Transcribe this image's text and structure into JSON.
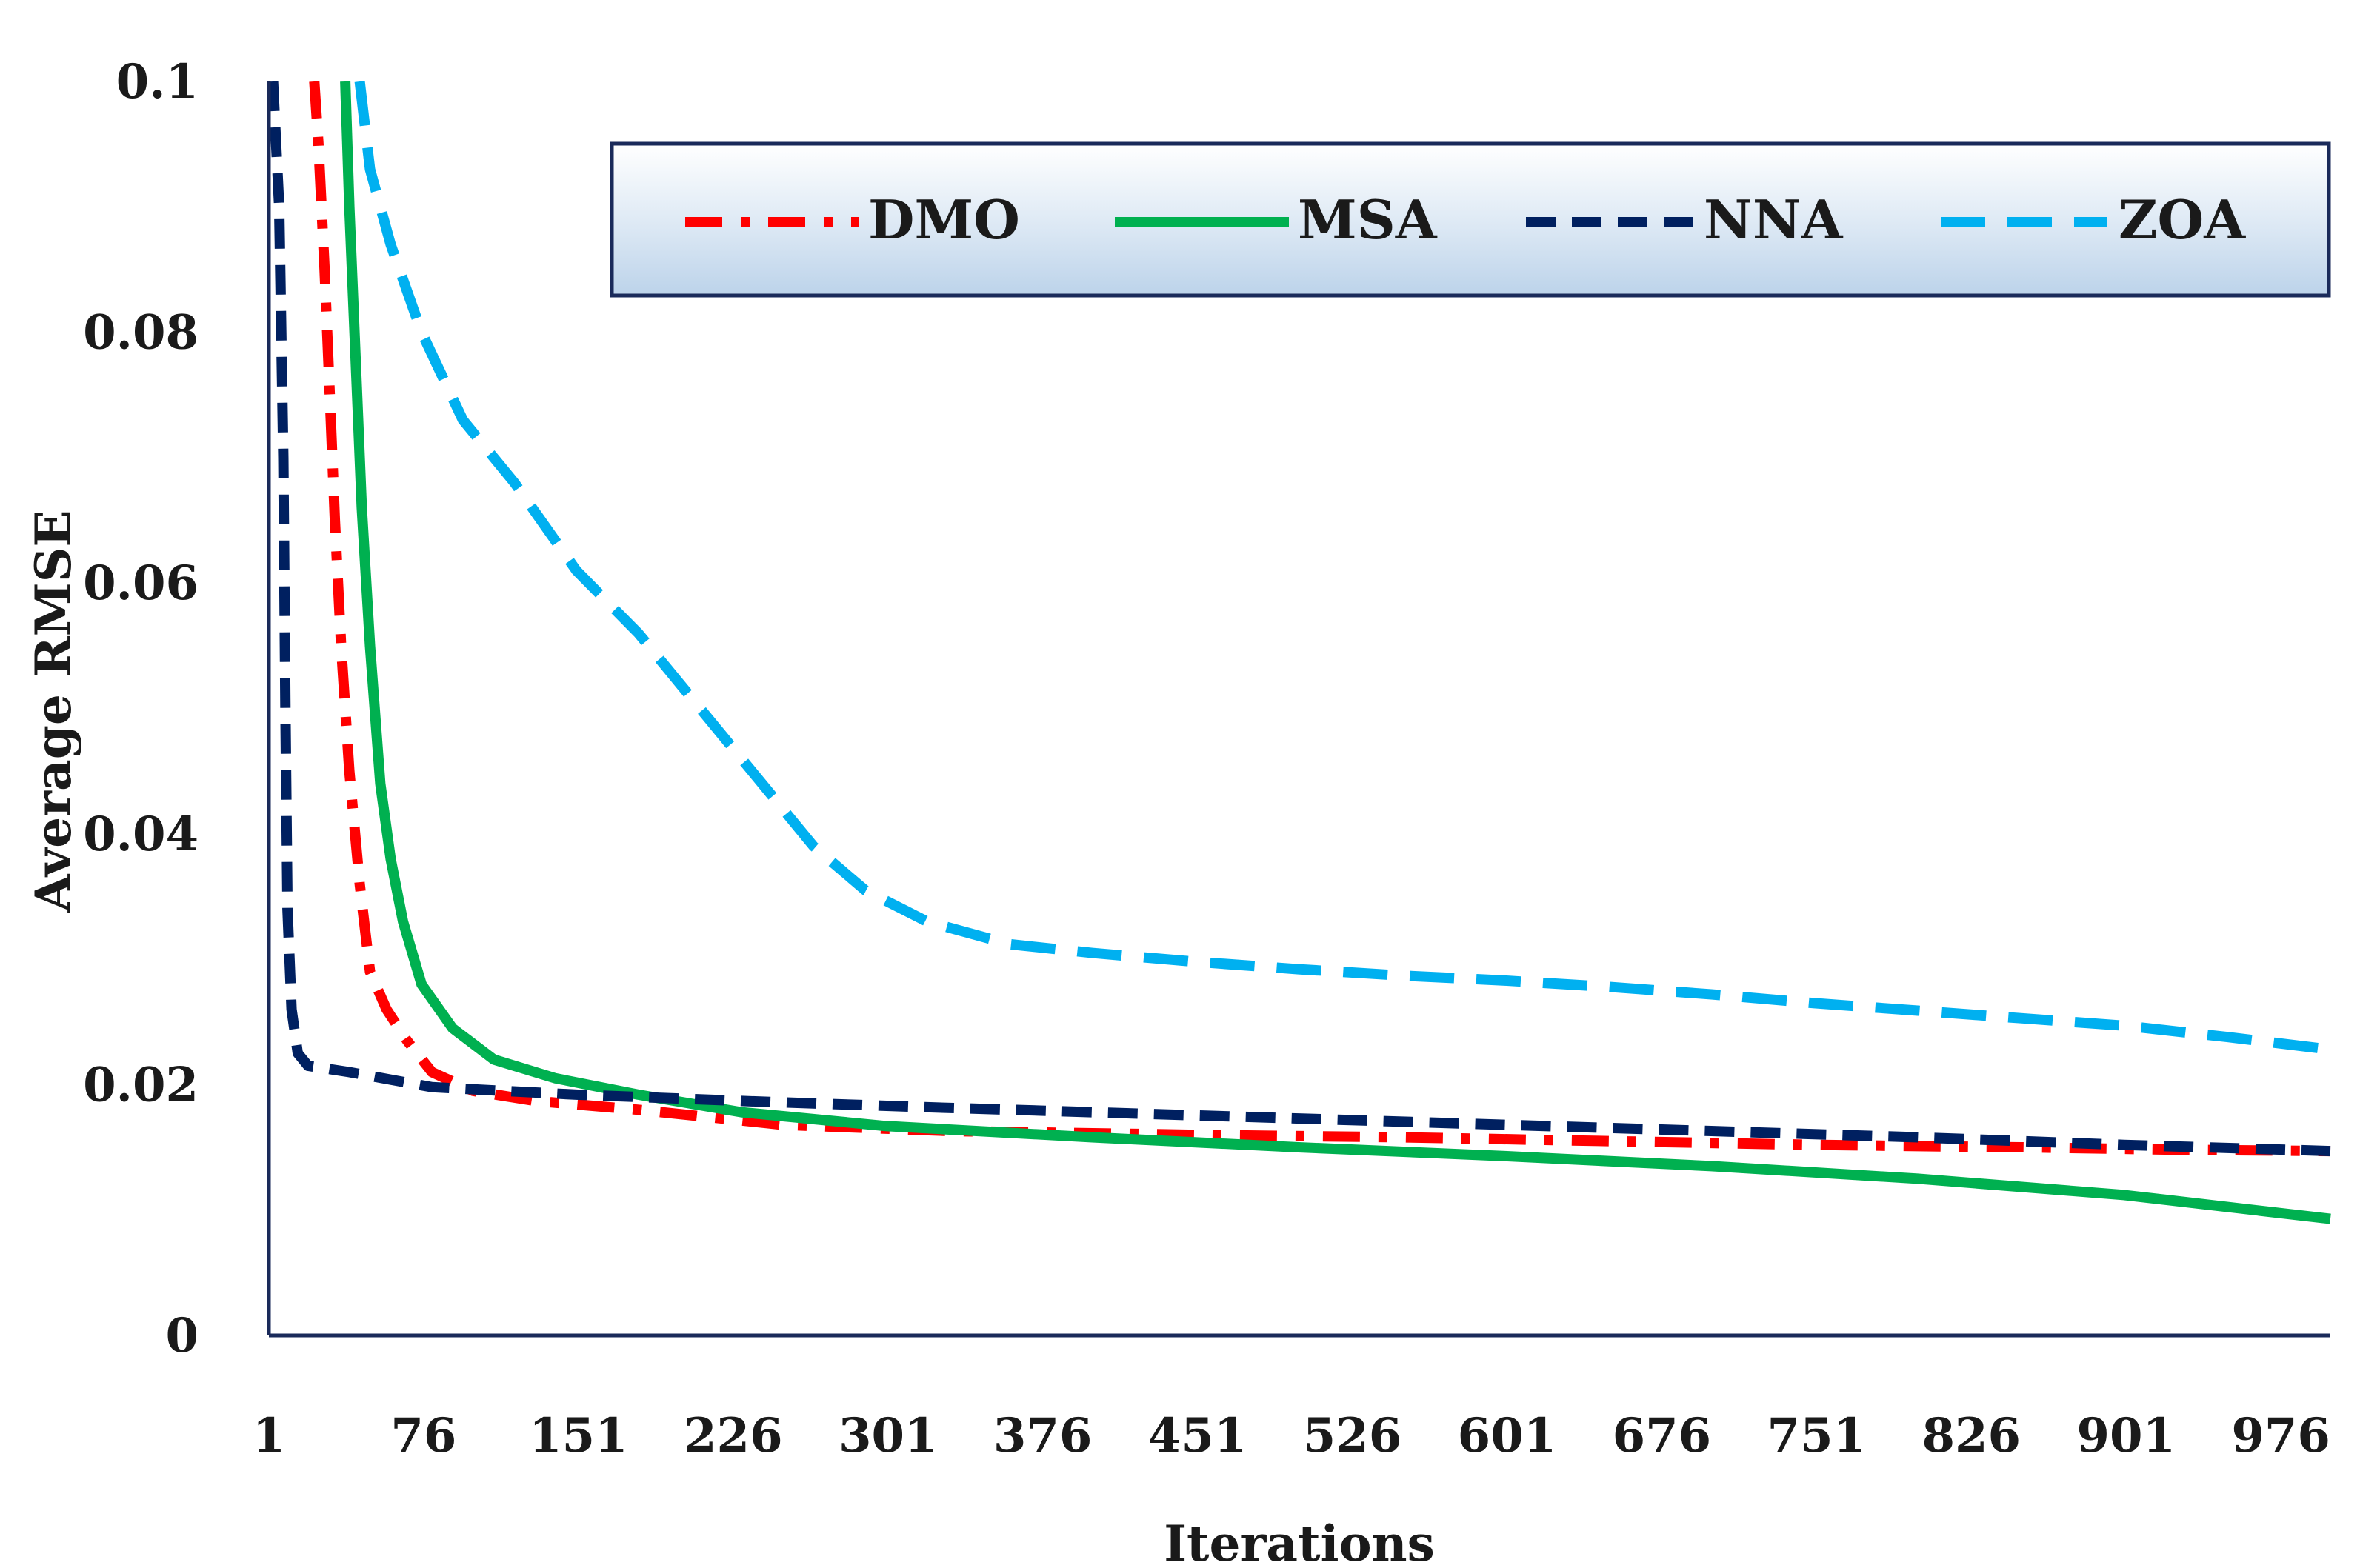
{
  "chart_data": {
    "type": "line",
    "title": "",
    "xlabel": "Iterations",
    "ylabel": "Average RMSE",
    "xlim": [
      1,
      1000
    ],
    "ylim": [
      0,
      0.1
    ],
    "x_ticks": [
      "1",
      "76",
      "151",
      "226",
      "301",
      "376",
      "451",
      "526",
      "601",
      "676",
      "751",
      "826",
      "901",
      "976"
    ],
    "y_ticks": [
      "0",
      "0.02",
      "0.04",
      "0.06",
      "0.08",
      "0.1"
    ],
    "y_tick_values": [
      0,
      0.02,
      0.04,
      0.06,
      0.08,
      0.1
    ],
    "x_tick_values": [
      1,
      76,
      151,
      226,
      301,
      376,
      451,
      526,
      601,
      676,
      751,
      826,
      901,
      976
    ],
    "legend_position": "top-right",
    "series": [
      {
        "name": "DMO",
        "color": "#ff0000",
        "style": "dash-dot",
        "points": [
          [
            23,
            0.1
          ],
          [
            25,
            0.095
          ],
          [
            28,
            0.085
          ],
          [
            30,
            0.077
          ],
          [
            33,
            0.065
          ],
          [
            36,
            0.055
          ],
          [
            40,
            0.045
          ],
          [
            45,
            0.036
          ],
          [
            50,
            0.029
          ],
          [
            58,
            0.026
          ],
          [
            68,
            0.0235
          ],
          [
            80,
            0.021
          ],
          [
            100,
            0.0195
          ],
          [
            130,
            0.0187
          ],
          [
            180,
            0.018
          ],
          [
            250,
            0.0168
          ],
          [
            330,
            0.0163
          ],
          [
            450,
            0.016
          ],
          [
            550,
            0.0158
          ],
          [
            650,
            0.0155
          ],
          [
            750,
            0.0152
          ],
          [
            850,
            0.015
          ],
          [
            930,
            0.0148
          ],
          [
            1000,
            0.0147
          ]
        ]
      },
      {
        "name": "MSA",
        "color": "#00b050",
        "style": "solid",
        "points": [
          [
            38,
            0.1
          ],
          [
            40,
            0.09
          ],
          [
            43,
            0.078
          ],
          [
            46,
            0.066
          ],
          [
            50,
            0.055
          ],
          [
            55,
            0.044
          ],
          [
            60,
            0.038
          ],
          [
            66,
            0.033
          ],
          [
            75,
            0.028
          ],
          [
            90,
            0.0245
          ],
          [
            110,
            0.022
          ],
          [
            140,
            0.0205
          ],
          [
            180,
            0.0192
          ],
          [
            230,
            0.0178
          ],
          [
            300,
            0.0167
          ],
          [
            400,
            0.0158
          ],
          [
            500,
            0.015
          ],
          [
            600,
            0.0143
          ],
          [
            700,
            0.0135
          ],
          [
            800,
            0.0125
          ],
          [
            900,
            0.0112
          ],
          [
            1000,
            0.0093
          ]
        ]
      },
      {
        "name": "NNA",
        "color": "#002060",
        "style": "dash",
        "points": [
          [
            3,
            0.1
          ],
          [
            6,
            0.09
          ],
          [
            8,
            0.07
          ],
          [
            9,
            0.05
          ],
          [
            10,
            0.034
          ],
          [
            12,
            0.026
          ],
          [
            15,
            0.0225
          ],
          [
            20,
            0.0215
          ],
          [
            40,
            0.021
          ],
          [
            80,
            0.0198
          ],
          [
            150,
            0.0192
          ],
          [
            230,
            0.0187
          ],
          [
            320,
            0.0182
          ],
          [
            400,
            0.0178
          ],
          [
            500,
            0.0173
          ],
          [
            600,
            0.0168
          ],
          [
            700,
            0.0163
          ],
          [
            800,
            0.0158
          ],
          [
            900,
            0.0152
          ],
          [
            1000,
            0.0147
          ]
        ]
      },
      {
        "name": "ZOA",
        "color": "#00b0f0",
        "style": "dash",
        "points": [
          [
            45,
            0.1
          ],
          [
            50,
            0.093
          ],
          [
            60,
            0.087
          ],
          [
            75,
            0.08
          ],
          [
            95,
            0.073
          ],
          [
            120,
            0.068
          ],
          [
            150,
            0.061
          ],
          [
            180,
            0.056
          ],
          [
            210,
            0.05
          ],
          [
            240,
            0.044
          ],
          [
            265,
            0.039
          ],
          [
            290,
            0.0355
          ],
          [
            320,
            0.033
          ],
          [
            360,
            0.0312
          ],
          [
            400,
            0.0305
          ],
          [
            450,
            0.0298
          ],
          [
            500,
            0.0292
          ],
          [
            550,
            0.0287
          ],
          [
            600,
            0.0283
          ],
          [
            650,
            0.0278
          ],
          [
            700,
            0.0272
          ],
          [
            750,
            0.0265
          ],
          [
            800,
            0.0259
          ],
          [
            850,
            0.0253
          ],
          [
            900,
            0.0247
          ],
          [
            950,
            0.0238
          ],
          [
            1000,
            0.0228
          ]
        ]
      }
    ]
  }
}
